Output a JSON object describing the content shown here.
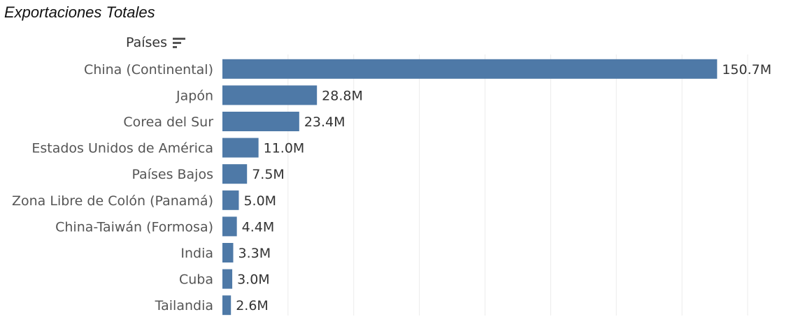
{
  "chart_data": {
    "type": "bar",
    "orientation": "horizontal",
    "title": "Exportaciones Totales",
    "ylabel": "Países",
    "xlabel": "",
    "categories": [
      "China (Continental)",
      "Japón",
      "Corea del Sur",
      "Estados Unidos de América",
      "Países Bajos",
      "Zona Libre de Colón (Panamá)",
      "China-Taiwán (Formosa)",
      "India",
      "Cuba",
      "Tailandia"
    ],
    "values": [
      150.7,
      28.8,
      23.4,
      11.0,
      7.5,
      5.0,
      4.4,
      3.3,
      3.0,
      2.6
    ],
    "value_labels": [
      "150.7M",
      "28.8M",
      "23.4M",
      "11.0M",
      "7.5M",
      "5.0M",
      "4.4M",
      "3.3M",
      "3.0M",
      "2.6M"
    ],
    "units": "M",
    "xlim": [
      0,
      160
    ],
    "grid_step": 20,
    "grid": true,
    "bar_color": "#4e79a7",
    "grid_color": "#ebebeb"
  },
  "header": {
    "sort_icon": "sort-descending-icon"
  }
}
